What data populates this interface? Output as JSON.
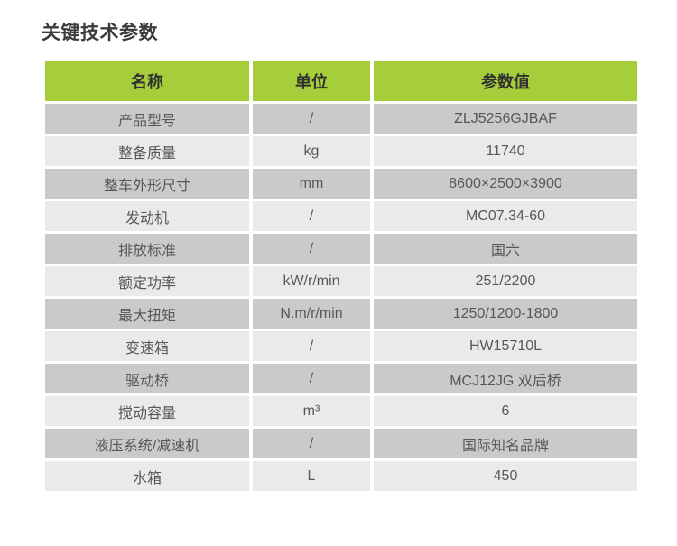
{
  "page": {
    "title": "关键技术参数"
  },
  "colors": {
    "header_bg": "#a6cd3a",
    "row_dark_bg": "#c9cacb",
    "row_light_bg": "#eaeaea",
    "header_text": "#303030",
    "cell_text": "#57585a",
    "title_text": "#3b3b3b"
  },
  "table": {
    "headers": [
      {
        "label": "名称"
      },
      {
        "label": "单位"
      },
      {
        "label": "参数值"
      }
    ],
    "rows": [
      {
        "name": "产品型号",
        "unit": "/",
        "value": "ZLJ5256GJBAF"
      },
      {
        "name": "整备质量",
        "unit": "kg",
        "value": "11740"
      },
      {
        "name": "整车外形尺寸",
        "unit": "mm",
        "value": "8600×2500×3900"
      },
      {
        "name": "发动机",
        "unit": "/",
        "value": "MC07.34-60"
      },
      {
        "name": "排放标准",
        "unit": "/",
        "value": "国六"
      },
      {
        "name": "额定功率",
        "unit": "kW/r/min",
        "value": "251/2200"
      },
      {
        "name": "最大扭矩",
        "unit": "N.m/r/min",
        "value": "1250/1200-1800"
      },
      {
        "name": "变速箱",
        "unit": "/",
        "value": "HW15710L"
      },
      {
        "name": "驱动桥",
        "unit": "/",
        "value": "MCJ12JG 双后桥"
      },
      {
        "name": "搅动容量",
        "unit": "m³",
        "value": "6"
      },
      {
        "name": "液压系统/减速机",
        "unit": "/",
        "value": "国际知名品牌"
      },
      {
        "name": "水箱",
        "unit": "L",
        "value": "450"
      }
    ]
  }
}
